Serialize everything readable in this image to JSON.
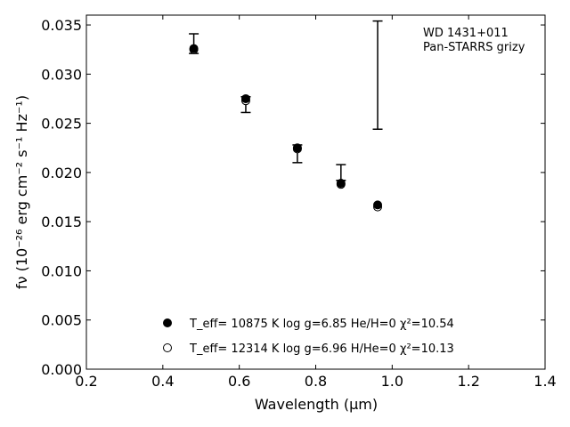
{
  "chart_data": {
    "type": "scatter",
    "annotation": [
      "WD 1431+011",
      "Pan-STARRS grizy"
    ],
    "xlabel": "Wavelength (μm)",
    "ylabel": "fν (10⁻²⁶ erg cm⁻² s⁻¹ Hz⁻¹)",
    "xlim": [
      0.2,
      1.4
    ],
    "ylim": [
      0.0,
      0.036
    ],
    "xticks": [
      "0.2",
      "0.4",
      "0.6",
      "0.8",
      "1.0",
      "1.2",
      "1.4"
    ],
    "yticks": [
      "0.000",
      "0.005",
      "0.010",
      "0.015",
      "0.020",
      "0.025",
      "0.030",
      "0.035"
    ],
    "grid": false,
    "legend_position": "lower-center",
    "observed": [
      {
        "x": 0.481,
        "y": 0.0331,
        "err": 0.001
      },
      {
        "x": 0.617,
        "y": 0.0269,
        "err": 0.0008
      },
      {
        "x": 0.752,
        "y": 0.0219,
        "err": 0.0009
      },
      {
        "x": 0.866,
        "y": 0.02,
        "err": 0.0008
      },
      {
        "x": 0.962,
        "y": 0.0299,
        "err": 0.0055
      }
    ],
    "series": [
      {
        "name": "T_eff= 10875 K  log g=6.85  He/H=0  χ²=10.54",
        "marker": "filled-circle",
        "x": [
          0.481,
          0.617,
          0.752,
          0.866,
          0.962
        ],
        "y": [
          0.0326,
          0.0275,
          0.0225,
          0.0189,
          0.0167
        ]
      },
      {
        "name": "T_eff= 12314 K  log g=6.96  H/He=0  χ²=10.13",
        "marker": "open-circle",
        "x": [
          0.481,
          0.617,
          0.752,
          0.866,
          0.962
        ],
        "y": [
          0.0325,
          0.0273,
          0.0224,
          0.0188,
          0.0165
        ]
      }
    ]
  }
}
